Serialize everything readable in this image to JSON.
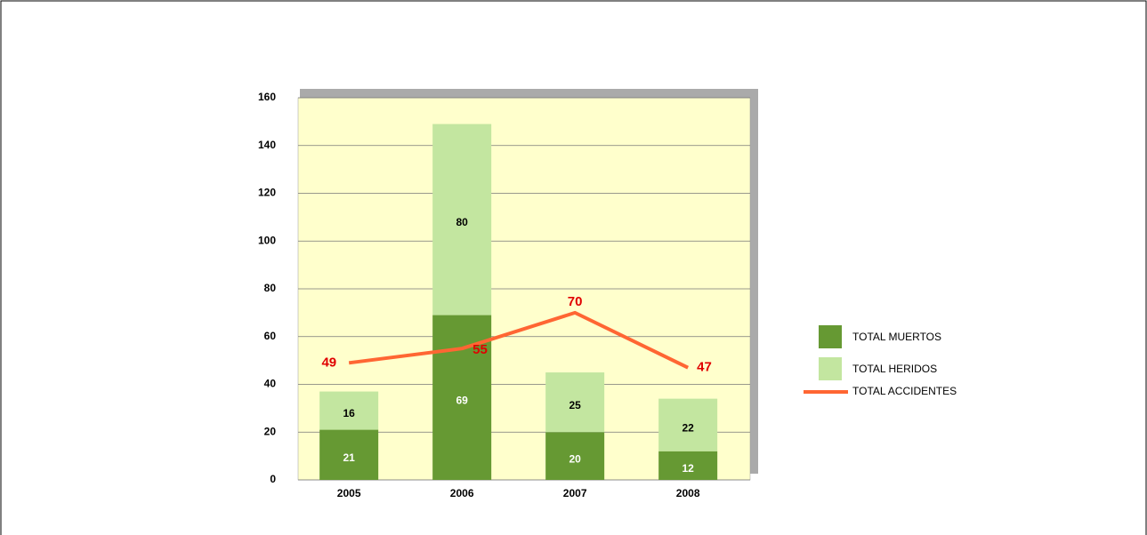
{
  "chart_data": {
    "type": "bar",
    "stacked": true,
    "categories": [
      "2005",
      "2006",
      "2007",
      "2008"
    ],
    "series": [
      {
        "name": "TOTAL MUERTOS",
        "type": "bar",
        "color": "#669933",
        "label_color": "#ffffff",
        "values": [
          21,
          69,
          20,
          12
        ]
      },
      {
        "name": "TOTAL HERIDOS",
        "type": "bar",
        "color": "#c3e6a0",
        "label_color": "#000000",
        "values": [
          16,
          80,
          25,
          22
        ]
      },
      {
        "name": "TOTAL ACCIDENTES",
        "type": "line",
        "color": "#ff6633",
        "label_color": "#e00000",
        "values": [
          49,
          55,
          70,
          47
        ]
      }
    ],
    "ylim": [
      0,
      160
    ],
    "yticks": [
      0,
      20,
      40,
      60,
      80,
      100,
      120,
      140,
      160
    ],
    "grid": true,
    "legend": "right",
    "background": "#ffffcc"
  }
}
